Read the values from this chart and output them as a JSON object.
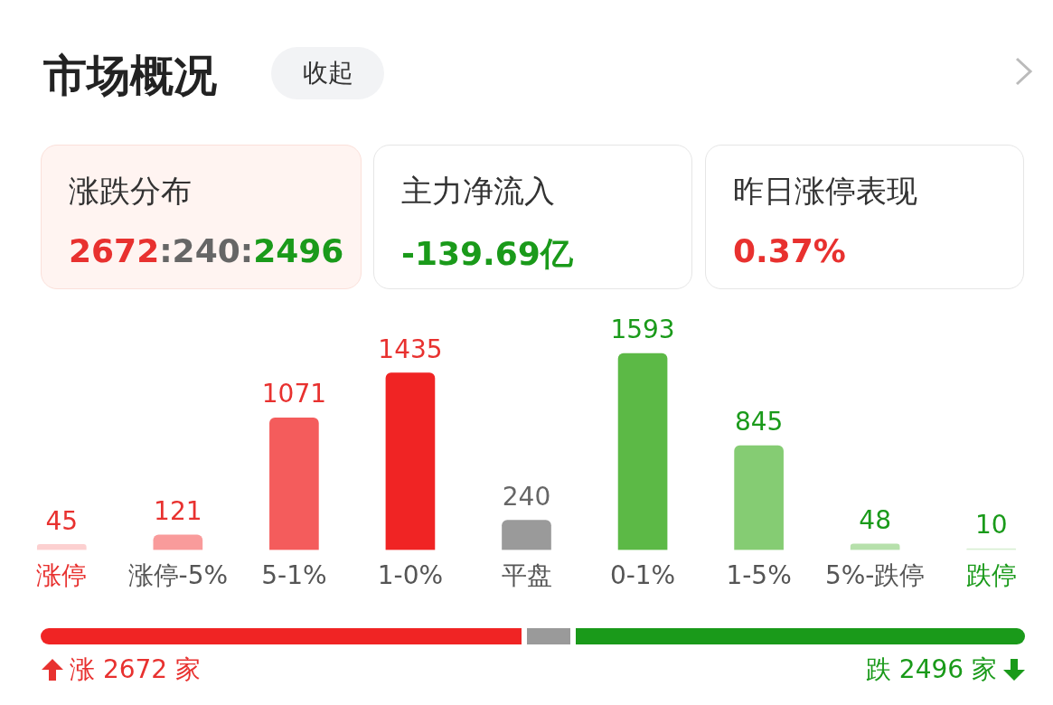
{
  "chart_data": {
    "type": "bar",
    "title": "市场概况",
    "categories": [
      "涨停",
      "涨停-5%",
      "5-1%",
      "1-0%",
      "平盘",
      "0-1%",
      "1-5%",
      "5%-跌停",
      "跌停"
    ],
    "values": [
      45,
      121,
      1071,
      1435,
      240,
      1593,
      845,
      48,
      10
    ],
    "colors": [
      "#fcd0d0",
      "#f99b9b",
      "#f45c5c",
      "#f02424",
      "#9a9a9a",
      "#5cb946",
      "#85cc73",
      "#b6e0ab",
      "#d8efd1"
    ],
    "data_labels": true,
    "annotations": [
      "收起",
      "涨跌分布",
      "2672:240:2496",
      "主力净流入",
      "-139.69亿",
      "昨日涨停表现",
      "0.37%",
      "涨 2672 家",
      "跌 2496 家"
    ]
  }
}
